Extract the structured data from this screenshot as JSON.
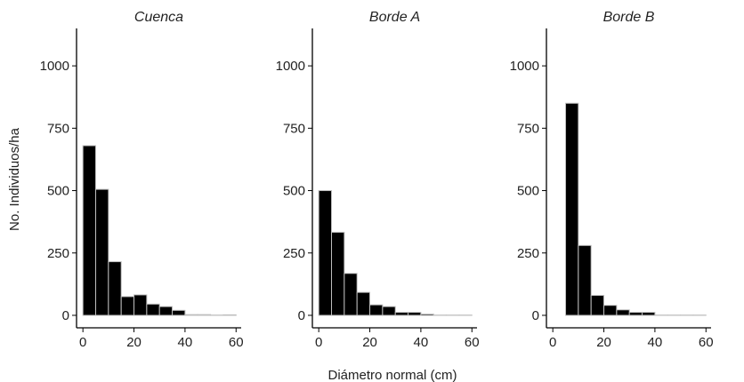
{
  "chart_data": {
    "type": "bar",
    "xlabel": "Diámetro normal (cm)",
    "ylabel": "No. Individuos/ha",
    "ylim": [
      -50,
      1150
    ],
    "yticks": [
      0,
      250,
      500,
      750,
      1000
    ],
    "xlim": [
      -2.5,
      62
    ],
    "xticks": [
      0,
      20,
      40,
      60
    ],
    "bin_width": 5,
    "facets": [
      {
        "title": "Cuenca",
        "bins": [
          {
            "x0": 0,
            "value": 680
          },
          {
            "x0": 5,
            "value": 505
          },
          {
            "x0": 10,
            "value": 215
          },
          {
            "x0": 15,
            "value": 75
          },
          {
            "x0": 20,
            "value": 82
          },
          {
            "x0": 25,
            "value": 45
          },
          {
            "x0": 30,
            "value": 35
          },
          {
            "x0": 35,
            "value": 20
          },
          {
            "x0": 40,
            "value": 3
          },
          {
            "x0": 45,
            "value": 3
          },
          {
            "x0": 50,
            "value": 1
          },
          {
            "x0": 55,
            "value": 2
          }
        ]
      },
      {
        "title": "Borde A",
        "bins": [
          {
            "x0": 0,
            "value": 500
          },
          {
            "x0": 5,
            "value": 333
          },
          {
            "x0": 10,
            "value": 168
          },
          {
            "x0": 15,
            "value": 92
          },
          {
            "x0": 20,
            "value": 42
          },
          {
            "x0": 25,
            "value": 35
          },
          {
            "x0": 30,
            "value": 12
          },
          {
            "x0": 35,
            "value": 12
          },
          {
            "x0": 40,
            "value": 5
          },
          {
            "x0": 45,
            "value": 1
          },
          {
            "x0": 50,
            "value": 1
          },
          {
            "x0": 55,
            "value": 1
          }
        ]
      },
      {
        "title": "Borde B",
        "bins": [
          {
            "x0": 5,
            "value": 850
          },
          {
            "x0": 10,
            "value": 280
          },
          {
            "x0": 15,
            "value": 80
          },
          {
            "x0": 20,
            "value": 40
          },
          {
            "x0": 25,
            "value": 22
          },
          {
            "x0": 30,
            "value": 12
          },
          {
            "x0": 35,
            "value": 12
          },
          {
            "x0": 40,
            "value": 1
          },
          {
            "x0": 45,
            "value": 1
          },
          {
            "x0": 50,
            "value": 1
          },
          {
            "x0": 55,
            "value": 1
          }
        ]
      }
    ]
  }
}
